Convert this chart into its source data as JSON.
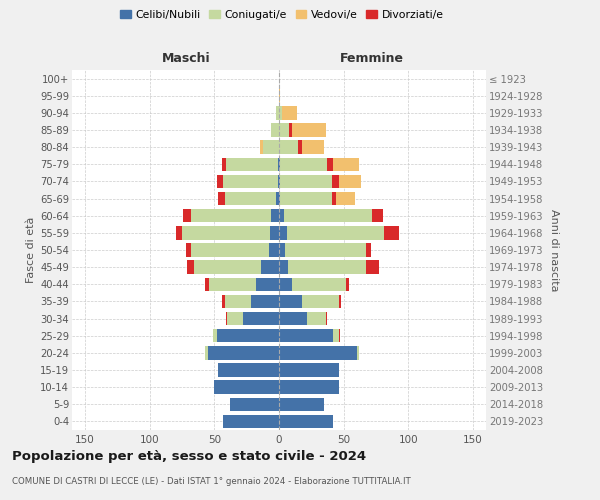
{
  "age_groups": [
    "0-4",
    "5-9",
    "10-14",
    "15-19",
    "20-24",
    "25-29",
    "30-34",
    "35-39",
    "40-44",
    "45-49",
    "50-54",
    "55-59",
    "60-64",
    "65-69",
    "70-74",
    "75-79",
    "80-84",
    "85-89",
    "90-94",
    "95-99",
    "100+"
  ],
  "birth_years": [
    "2019-2023",
    "2014-2018",
    "2009-2013",
    "2004-2008",
    "1999-2003",
    "1994-1998",
    "1989-1993",
    "1984-1988",
    "1979-1983",
    "1974-1978",
    "1969-1973",
    "1964-1968",
    "1959-1963",
    "1954-1958",
    "1949-1953",
    "1944-1948",
    "1939-1943",
    "1934-1938",
    "1929-1933",
    "1924-1928",
    "≤ 1923"
  ],
  "maschi": {
    "celibi": [
      43,
      38,
      50,
      47,
      55,
      48,
      28,
      22,
      18,
      14,
      8,
      7,
      6,
      2,
      1,
      1,
      0,
      0,
      0,
      0,
      0
    ],
    "coniugati": [
      0,
      0,
      0,
      0,
      2,
      3,
      12,
      20,
      36,
      52,
      60,
      68,
      62,
      40,
      42,
      40,
      12,
      6,
      2,
      0,
      0
    ],
    "vedovi": [
      0,
      0,
      0,
      0,
      0,
      0,
      0,
      0,
      0,
      1,
      1,
      2,
      2,
      3,
      2,
      2,
      3,
      0,
      0,
      0,
      0
    ],
    "divorziati": [
      0,
      0,
      0,
      0,
      0,
      0,
      1,
      2,
      3,
      5,
      4,
      5,
      6,
      5,
      5,
      3,
      0,
      0,
      0,
      0,
      0
    ]
  },
  "femmine": {
    "nubili": [
      42,
      35,
      46,
      46,
      60,
      42,
      22,
      18,
      10,
      7,
      5,
      6,
      4,
      1,
      1,
      1,
      0,
      0,
      0,
      0,
      0
    ],
    "coniugate": [
      0,
      0,
      0,
      0,
      2,
      4,
      14,
      28,
      42,
      60,
      62,
      75,
      68,
      40,
      40,
      36,
      15,
      8,
      2,
      0,
      0
    ],
    "vedove": [
      0,
      0,
      0,
      0,
      0,
      0,
      0,
      0,
      0,
      1,
      2,
      3,
      8,
      18,
      22,
      25,
      20,
      28,
      12,
      1,
      0
    ],
    "divorziate": [
      0,
      0,
      0,
      0,
      0,
      1,
      1,
      2,
      2,
      10,
      4,
      12,
      8,
      3,
      5,
      5,
      3,
      2,
      0,
      0,
      0
    ]
  },
  "colors": {
    "celibi": "#4472a8",
    "coniugati": "#c5d9a0",
    "vedovi": "#f2c06e",
    "divorziati": "#d9292a"
  },
  "title": "Popolazione per età, sesso e stato civile - 2024",
  "subtitle": "COMUNE DI CASTRI DI LECCE (LE) - Dati ISTAT 1° gennaio 2024 - Elaborazione TUTTITALIA.IT",
  "label_maschi": "Maschi",
  "label_femmine": "Femmine",
  "ylabel_left": "Fasce di età",
  "ylabel_right": "Anni di nascita",
  "xlim": 160,
  "bg_color": "#f0f0f0",
  "plot_bg": "#ffffff",
  "grid_color": "#cccccc",
  "legend_labels": [
    "Celibi/Nubili",
    "Coniugati/e",
    "Vedovi/e",
    "Divorziati/e"
  ]
}
